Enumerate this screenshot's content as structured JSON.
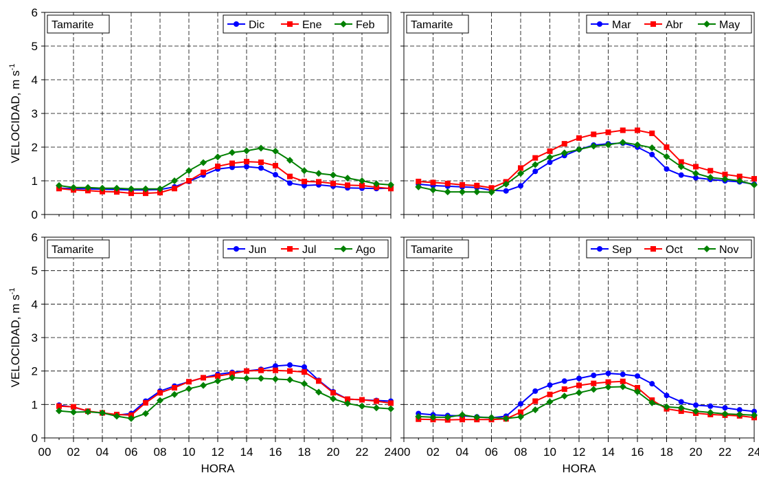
{
  "figure": {
    "ylabel": "VELOCIDAD, m s",
    "ylabel_superscript": "-1",
    "xlabel": "HORA"
  },
  "chart_data": [
    {
      "type": "line",
      "station": "Tamarite",
      "x": [
        1,
        2,
        3,
        4,
        5,
        6,
        7,
        8,
        9,
        10,
        11,
        12,
        13,
        14,
        15,
        16,
        17,
        18,
        19,
        20,
        21,
        22,
        23,
        24
      ],
      "xlim": [
        0,
        24
      ],
      "ylim": [
        0,
        6
      ],
      "grid": true,
      "legend": "top-right",
      "series": [
        {
          "name": "Dic",
          "color": "#0000ff",
          "marker": "circle",
          "values": [
            0.78,
            0.77,
            0.76,
            0.75,
            0.74,
            0.73,
            0.73,
            0.74,
            0.82,
            0.98,
            1.17,
            1.35,
            1.4,
            1.42,
            1.38,
            1.18,
            0.93,
            0.86,
            0.88,
            0.84,
            0.79,
            0.78,
            0.77,
            0.78
          ]
        },
        {
          "name": "Ene",
          "color": "#ff0000",
          "marker": "square",
          "values": [
            0.77,
            0.73,
            0.71,
            0.68,
            0.67,
            0.63,
            0.63,
            0.65,
            0.77,
            1.0,
            1.25,
            1.43,
            1.52,
            1.57,
            1.55,
            1.45,
            1.13,
            0.98,
            0.97,
            0.92,
            0.87,
            0.86,
            0.81,
            0.77
          ]
        },
        {
          "name": "Feb",
          "color": "#008000",
          "marker": "diamond",
          "values": [
            0.86,
            0.8,
            0.8,
            0.78,
            0.78,
            0.76,
            0.76,
            0.76,
            1.0,
            1.3,
            1.54,
            1.71,
            1.84,
            1.89,
            1.97,
            1.88,
            1.61,
            1.3,
            1.22,
            1.17,
            1.08,
            1.0,
            0.91,
            0.88
          ]
        }
      ]
    },
    {
      "type": "line",
      "station": "Tamarite",
      "x": [
        1,
        2,
        3,
        4,
        5,
        6,
        7,
        8,
        9,
        10,
        11,
        12,
        13,
        14,
        15,
        16,
        17,
        18,
        19,
        20,
        21,
        22,
        23,
        24
      ],
      "xlim": [
        0,
        24
      ],
      "ylim": [
        0,
        6
      ],
      "grid": true,
      "legend": "top-right",
      "series": [
        {
          "name": "Mar",
          "color": "#0000ff",
          "marker": "circle",
          "values": [
            0.9,
            0.86,
            0.84,
            0.82,
            0.8,
            0.72,
            0.7,
            0.85,
            1.28,
            1.55,
            1.75,
            1.93,
            2.06,
            2.1,
            2.12,
            2.0,
            1.78,
            1.35,
            1.17,
            1.09,
            1.04,
            1.0,
            0.97,
            0.9
          ]
        },
        {
          "name": "Abr",
          "color": "#ff0000",
          "marker": "square",
          "values": [
            0.98,
            0.95,
            0.92,
            0.88,
            0.86,
            0.79,
            0.97,
            1.38,
            1.68,
            1.88,
            2.1,
            2.27,
            2.38,
            2.44,
            2.5,
            2.5,
            2.41,
            2.0,
            1.56,
            1.42,
            1.3,
            1.19,
            1.13,
            1.06
          ]
        },
        {
          "name": "May",
          "color": "#008000",
          "marker": "diamond",
          "values": [
            0.82,
            0.73,
            0.67,
            0.67,
            0.67,
            0.66,
            0.9,
            1.22,
            1.48,
            1.7,
            1.83,
            1.93,
            2.03,
            2.07,
            2.14,
            2.07,
            1.98,
            1.72,
            1.42,
            1.22,
            1.1,
            1.05,
            1.0,
            0.88
          ]
        }
      ]
    },
    {
      "type": "line",
      "station": "Tamarite",
      "x": [
        1,
        2,
        3,
        4,
        5,
        6,
        7,
        8,
        9,
        10,
        11,
        12,
        13,
        14,
        15,
        16,
        17,
        18,
        19,
        20,
        21,
        22,
        23,
        24
      ],
      "xlim": [
        0,
        24
      ],
      "ylim": [
        0,
        6
      ],
      "grid": true,
      "legend": "top-right",
      "series": [
        {
          "name": "Jun",
          "color": "#0000ff",
          "marker": "circle",
          "values": [
            0.98,
            0.92,
            0.8,
            0.74,
            0.68,
            0.73,
            1.1,
            1.4,
            1.55,
            1.68,
            1.8,
            1.9,
            1.96,
            2.0,
            2.05,
            2.15,
            2.18,
            2.12,
            1.72,
            1.38,
            1.16,
            1.14,
            1.12,
            1.1
          ]
        },
        {
          "name": "Jul",
          "color": "#ff0000",
          "marker": "square",
          "values": [
            0.95,
            0.93,
            0.8,
            0.75,
            0.7,
            0.68,
            1.05,
            1.35,
            1.5,
            1.68,
            1.8,
            1.85,
            1.92,
            2.0,
            2.02,
            2.02,
            2.0,
            1.97,
            1.7,
            1.35,
            1.16,
            1.14,
            1.1,
            1.04
          ]
        },
        {
          "name": "Ago",
          "color": "#008000",
          "marker": "diamond",
          "values": [
            0.81,
            0.77,
            0.78,
            0.75,
            0.65,
            0.58,
            0.73,
            1.12,
            1.3,
            1.47,
            1.57,
            1.7,
            1.8,
            1.78,
            1.78,
            1.76,
            1.74,
            1.62,
            1.37,
            1.17,
            1.03,
            0.95,
            0.9,
            0.87
          ]
        }
      ]
    },
    {
      "type": "line",
      "station": "Tamarite",
      "x": [
        1,
        2,
        3,
        4,
        5,
        6,
        7,
        8,
        9,
        10,
        11,
        12,
        13,
        14,
        15,
        16,
        17,
        18,
        19,
        20,
        21,
        22,
        23,
        24
      ],
      "xlim": [
        0,
        24
      ],
      "ylim": [
        0,
        6
      ],
      "grid": true,
      "legend": "top-right",
      "series": [
        {
          "name": "Sep",
          "color": "#0000ff",
          "marker": "circle",
          "values": [
            0.73,
            0.69,
            0.67,
            0.66,
            0.63,
            0.6,
            0.65,
            1.02,
            1.4,
            1.58,
            1.7,
            1.78,
            1.87,
            1.93,
            1.9,
            1.85,
            1.62,
            1.27,
            1.08,
            0.98,
            0.95,
            0.9,
            0.84,
            0.79
          ]
        },
        {
          "name": "Oct",
          "color": "#ff0000",
          "marker": "square",
          "values": [
            0.56,
            0.55,
            0.54,
            0.55,
            0.55,
            0.55,
            0.57,
            0.77,
            1.1,
            1.3,
            1.46,
            1.57,
            1.63,
            1.67,
            1.69,
            1.5,
            1.13,
            0.87,
            0.8,
            0.74,
            0.7,
            0.68,
            0.66,
            0.61
          ]
        },
        {
          "name": "Nov",
          "color": "#008000",
          "marker": "diamond",
          "values": [
            0.64,
            0.62,
            0.62,
            0.69,
            0.62,
            0.61,
            0.58,
            0.63,
            0.84,
            1.08,
            1.25,
            1.35,
            1.45,
            1.52,
            1.53,
            1.38,
            1.05,
            0.93,
            0.9,
            0.8,
            0.76,
            0.72,
            0.7,
            0.68
          ]
        }
      ]
    }
  ]
}
